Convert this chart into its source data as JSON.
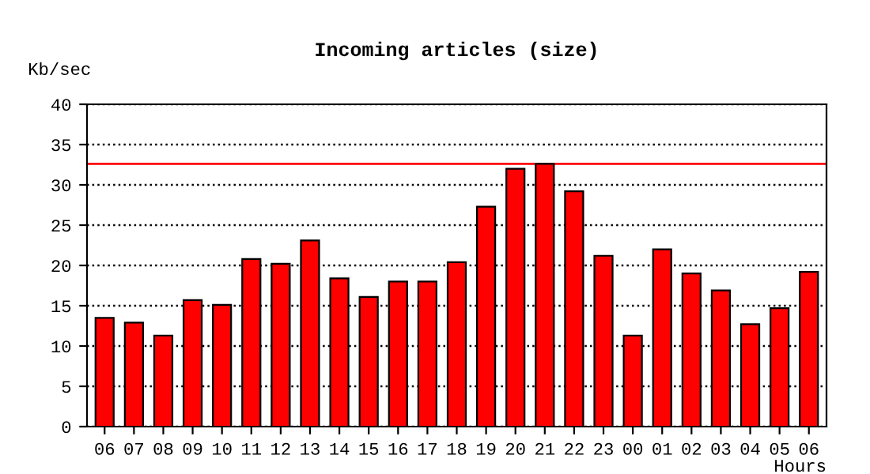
{
  "chart_data": {
    "type": "bar",
    "title": "Incoming articles (size)",
    "ylabel": "Kb/sec",
    "xlabel": "Hours",
    "categories": [
      "06",
      "07",
      "08",
      "09",
      "10",
      "11",
      "12",
      "13",
      "14",
      "15",
      "16",
      "17",
      "18",
      "19",
      "20",
      "21",
      "22",
      "23",
      "00",
      "01",
      "02",
      "03",
      "04",
      "05",
      "06"
    ],
    "series": [
      {
        "color": "#ff0000",
        "values": [
          13.5,
          12.9,
          11.3,
          15.7,
          15.1,
          20.8,
          20.2,
          23.1,
          18.4,
          16.1,
          18.0,
          18.0,
          20.4,
          27.3,
          32.0,
          32.6,
          29.2,
          21.2,
          11.3,
          22.0,
          19.0,
          16.9,
          12.7,
          14.7,
          19.2
        ]
      }
    ],
    "ylim": [
      0,
      40
    ],
    "yticks": [
      0,
      5,
      10,
      15,
      20,
      25,
      30,
      35,
      40
    ],
    "grid": "y",
    "line_style": "dotted",
    "ref_lines": [
      {
        "axis": "y",
        "value": 32.6,
        "color": "#ff0000"
      }
    ]
  }
}
